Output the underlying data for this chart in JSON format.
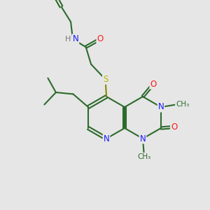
{
  "bg": "#e6e6e6",
  "bond_color": "#2d6b2d",
  "lw": 1.5,
  "atom_colors": {
    "N": "#1a1aff",
    "O": "#ff1a1a",
    "S": "#b8b800",
    "H": "#777777",
    "C": "#2d6b2d"
  },
  "fs": 8.5
}
